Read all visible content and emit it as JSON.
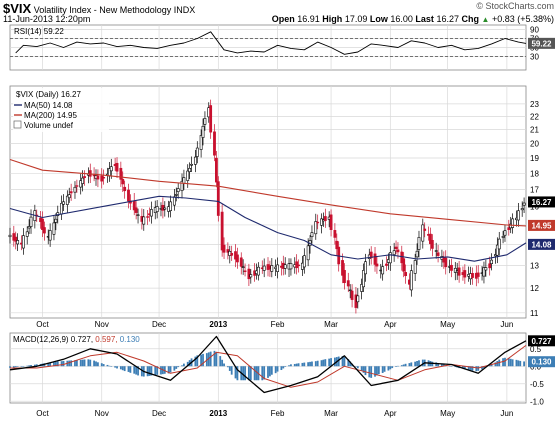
{
  "header": {
    "symbol": "$VIX",
    "name": "Volatility Index - New Methodology",
    "exchange": "INDX",
    "date": "11-Jun-2013 12:20pm",
    "brand": "© StockCharts.com",
    "open_label": "Open",
    "open": "16.91",
    "high_label": "High",
    "high": "17.09",
    "low_label": "Low",
    "low": "16.00",
    "last_label": "Last",
    "last": "16.27",
    "chg_label": "Chg",
    "chg": "+0.83 (+5.38%)",
    "chg_arrow": "▲"
  },
  "colors": {
    "price_up": "#000000",
    "price_down": "#c8102e",
    "ma50": "#1f2a6e",
    "ma200": "#c0392b",
    "rsi_line": "#000000",
    "macd_line": "#000000",
    "signal_line": "#c0392b",
    "histogram": "#3d7eb5",
    "grid": "#d9d9d9",
    "last_tag_bg": "#000000",
    "ma50_tag_bg": "#1f2a6e",
    "ma200_tag_bg": "#c0392b"
  },
  "chart_data": [
    {
      "type": "line",
      "panel": "rsi",
      "legend": "RSI(14) 59.22",
      "ylim": [
        0,
        100
      ],
      "yticks": [
        30,
        50,
        70,
        90
      ],
      "reference_levels": [
        30,
        70
      ],
      "last_tag": "59.22",
      "x": [
        "2012-09-17",
        "2012-09-21",
        "2012-09-28",
        "2012-10-05",
        "2012-10-12",
        "2012-10-19",
        "2012-10-26",
        "2012-11-02",
        "2012-11-09",
        "2012-11-16",
        "2012-11-23",
        "2012-11-30",
        "2012-12-07",
        "2012-12-14",
        "2012-12-21",
        "2012-12-28",
        "2013-01-04",
        "2013-01-11",
        "2013-01-18",
        "2013-01-25",
        "2013-02-01",
        "2013-02-08",
        "2013-02-15",
        "2013-02-22",
        "2013-03-01",
        "2013-03-08",
        "2013-03-15",
        "2013-03-22",
        "2013-03-28",
        "2013-04-05",
        "2013-04-12",
        "2013-04-19",
        "2013-04-26",
        "2013-05-03",
        "2013-05-10",
        "2013-05-17",
        "2013-05-24",
        "2013-05-31",
        "2013-06-07",
        "2013-06-11"
      ],
      "values": [
        38,
        55,
        52,
        60,
        50,
        62,
        58,
        60,
        52,
        55,
        50,
        48,
        55,
        60,
        70,
        85,
        45,
        38,
        42,
        40,
        55,
        48,
        45,
        62,
        50,
        35,
        40,
        58,
        55,
        50,
        65,
        60,
        50,
        55,
        45,
        48,
        58,
        70,
        62,
        59.22
      ]
    },
    {
      "type": "candlestick",
      "panel": "price",
      "legend": [
        "$VIX (Daily) 16.27",
        "MA(50) 14.08",
        "MA(200) 14.95",
        "Volume undef"
      ],
      "ylim": [
        10.8,
        24.5
      ],
      "log_scale": true,
      "yticks": [
        11,
        12,
        13,
        14,
        15,
        16,
        17,
        18,
        19,
        20,
        21,
        22,
        23
      ],
      "x_tick_labels": [
        "Oct",
        "Nov",
        "Dec",
        "2013",
        "Feb",
        "Mar",
        "Apr",
        "May",
        "Jun"
      ],
      "x_tick_dates": [
        "2012-10-01",
        "2012-11-01",
        "2012-12-01",
        "2013-01-01",
        "2013-02-01",
        "2013-03-01",
        "2013-04-01",
        "2013-05-01",
        "2013-06-01"
      ],
      "x_range": [
        "2012-09-14",
        "2013-06-11"
      ],
      "last_tag": "16.27",
      "ma50_tag": "14.08",
      "ma200_tag": "14.95",
      "weekly_close": {
        "x": [
          "2012-09-14",
          "2012-09-21",
          "2012-09-28",
          "2012-10-05",
          "2012-10-12",
          "2012-10-19",
          "2012-10-26",
          "2012-11-02",
          "2012-11-09",
          "2012-11-16",
          "2012-11-23",
          "2012-11-30",
          "2012-12-07",
          "2012-12-14",
          "2012-12-21",
          "2012-12-28",
          "2013-01-04",
          "2013-01-11",
          "2013-01-18",
          "2013-01-25",
          "2013-02-01",
          "2013-02-08",
          "2013-02-15",
          "2013-02-22",
          "2013-03-01",
          "2013-03-08",
          "2013-03-15",
          "2013-03-22",
          "2013-03-28",
          "2013-04-05",
          "2013-04-12",
          "2013-04-19",
          "2013-04-26",
          "2013-05-03",
          "2013-05-10",
          "2013-05-17",
          "2013-05-24",
          "2013-05-31",
          "2013-06-07",
          "2013-06-11"
        ],
        "values": [
          14.5,
          14.0,
          15.7,
          14.3,
          16.1,
          17.1,
          18.0,
          17.6,
          18.6,
          16.4,
          15.2,
          15.9,
          15.9,
          17.4,
          19.0,
          22.7,
          13.8,
          13.4,
          12.5,
          12.9,
          12.9,
          13.0,
          13.0,
          15.1,
          15.4,
          12.6,
          11.3,
          13.6,
          12.7,
          13.9,
          12.1,
          14.9,
          13.6,
          12.9,
          12.6,
          12.5,
          13.0,
          14.5,
          15.4,
          16.27
        ]
      },
      "ma50": {
        "x": [
          "2012-09-14",
          "2012-10-01",
          "2012-11-01",
          "2012-12-01",
          "2012-12-15",
          "2013-01-01",
          "2013-01-15",
          "2013-02-01",
          "2013-02-15",
          "2013-03-01",
          "2013-03-15",
          "2013-04-01",
          "2013-04-15",
          "2013-05-01",
          "2013-05-15",
          "2013-06-01",
          "2013-06-11"
        ],
        "values": [
          15.9,
          15.4,
          16.0,
          16.6,
          16.5,
          16.3,
          15.4,
          14.6,
          14.2,
          13.5,
          13.3,
          13.5,
          13.3,
          13.4,
          13.2,
          13.5,
          14.08
        ]
      },
      "ma200": {
        "x": [
          "2012-09-14",
          "2012-10-01",
          "2012-11-01",
          "2012-12-01",
          "2013-01-01",
          "2013-02-01",
          "2013-03-01",
          "2013-04-01",
          "2013-05-01",
          "2013-06-01",
          "2013-06-11"
        ],
        "values": [
          18.9,
          18.2,
          17.9,
          17.5,
          17.2,
          16.6,
          16.1,
          15.6,
          15.3,
          15.0,
          14.95
        ]
      }
    },
    {
      "type": "line",
      "panel": "macd",
      "legend": [
        "MACD(12,26,9)",
        "0.727",
        "0.597",
        "0.130"
      ],
      "ylim": [
        -1.05,
        0.95
      ],
      "yticks": [
        -1.0,
        -0.5,
        0.0,
        0.5
      ],
      "last_tags": [
        "0.727",
        "0.130"
      ],
      "x_tick_labels": [
        "Oct",
        "Nov",
        "Dec",
        "2013",
        "Feb",
        "Mar",
        "Apr",
        "May",
        "Jun"
      ],
      "x_tick_dates": [
        "2012-10-01",
        "2012-11-01",
        "2012-12-01",
        "2013-01-01",
        "2013-02-01",
        "2013-03-01",
        "2013-04-01",
        "2013-05-01",
        "2013-06-01"
      ],
      "series": [
        {
          "role": "macd",
          "x": [
            "2012-09-14",
            "2012-09-28",
            "2012-10-12",
            "2012-10-26",
            "2012-11-09",
            "2012-11-23",
            "2012-12-07",
            "2012-12-21",
            "2012-12-31",
            "2013-01-11",
            "2013-01-25",
            "2013-02-08",
            "2013-02-22",
            "2013-03-08",
            "2013-03-22",
            "2013-04-05",
            "2013-04-19",
            "2013-05-03",
            "2013-05-17",
            "2013-05-31",
            "2013-06-11"
          ],
          "values": [
            -0.1,
            0.0,
            0.2,
            0.5,
            0.35,
            -0.15,
            -0.4,
            0.25,
            0.85,
            -0.1,
            -0.75,
            -0.55,
            -0.3,
            0.3,
            -0.55,
            -0.4,
            0.1,
            0.05,
            -0.2,
            0.4,
            0.727
          ]
        },
        {
          "role": "signal",
          "x": [
            "2012-09-14",
            "2012-09-28",
            "2012-10-12",
            "2012-10-26",
            "2012-11-09",
            "2012-11-23",
            "2012-12-07",
            "2012-12-21",
            "2012-12-31",
            "2013-01-11",
            "2013-01-25",
            "2013-02-08",
            "2013-02-22",
            "2013-03-08",
            "2013-03-22",
            "2013-04-05",
            "2013-04-19",
            "2013-05-03",
            "2013-05-17",
            "2013-05-31",
            "2013-06-11"
          ],
          "values": [
            -0.05,
            -0.05,
            0.05,
            0.3,
            0.4,
            0.15,
            -0.2,
            -0.05,
            0.4,
            0.3,
            -0.35,
            -0.6,
            -0.45,
            0.0,
            -0.2,
            -0.4,
            -0.1,
            0.05,
            -0.05,
            0.15,
            0.597
          ]
        },
        {
          "role": "histogram",
          "x": [
            "2012-09-14",
            "2012-09-28",
            "2012-10-12",
            "2012-10-26",
            "2012-11-09",
            "2012-11-23",
            "2012-12-07",
            "2012-12-21",
            "2012-12-31",
            "2013-01-11",
            "2013-01-25",
            "2013-02-08",
            "2013-02-22",
            "2013-03-08",
            "2013-03-22",
            "2013-04-05",
            "2013-04-19",
            "2013-05-03",
            "2013-05-17",
            "2013-05-31",
            "2013-06-11"
          ],
          "values": [
            -0.05,
            0.05,
            0.15,
            0.2,
            -0.05,
            -0.3,
            -0.2,
            0.3,
            0.45,
            -0.4,
            -0.4,
            0.05,
            0.15,
            0.3,
            -0.35,
            0.0,
            0.2,
            0.0,
            -0.15,
            0.25,
            0.13
          ]
        }
      ]
    }
  ]
}
